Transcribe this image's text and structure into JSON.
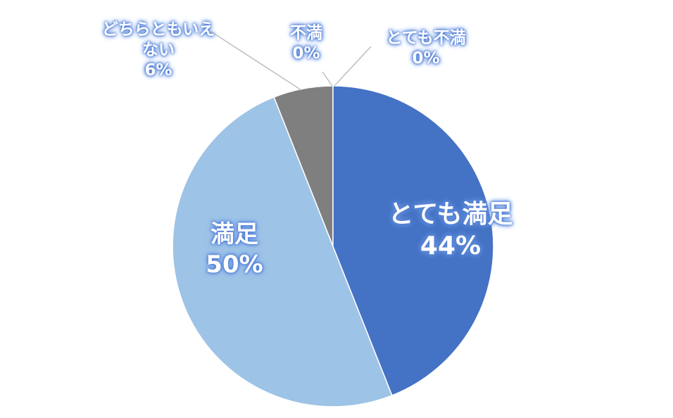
{
  "chart_data": {
    "type": "pie",
    "categories": [
      "とても満足",
      "満足",
      "どちらともいえない",
      "不満",
      "とても不満"
    ],
    "values": [
      44,
      50,
      6,
      0,
      0
    ],
    "value_labels": [
      "44%",
      "50%",
      "6%",
      "0%",
      "0%"
    ],
    "colors": [
      "#4472c4",
      "#9dc3e6",
      "#7f7f7f",
      "#a5a5a5",
      "#264478"
    ]
  }
}
